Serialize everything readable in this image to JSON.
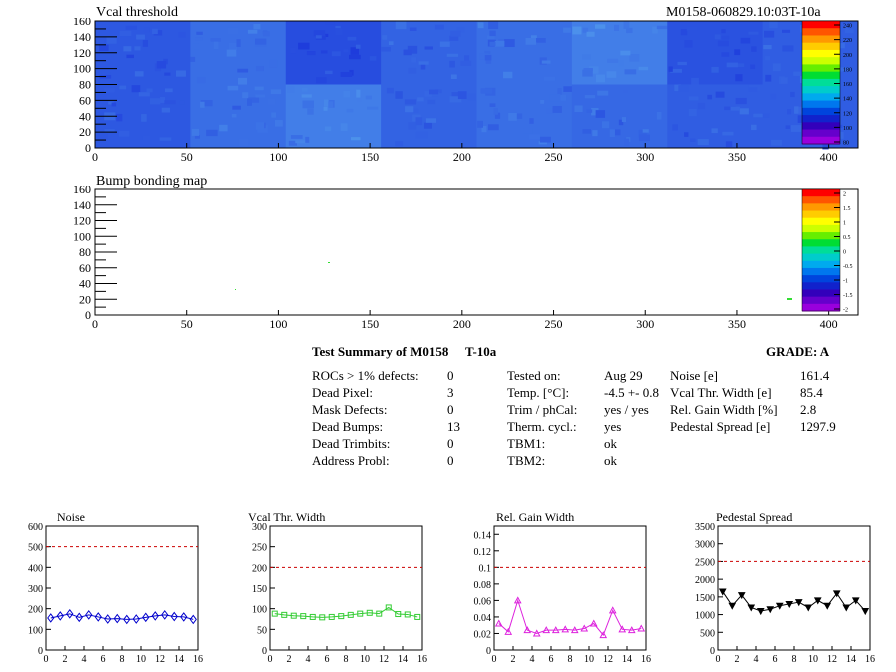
{
  "header": {
    "map_title": "Vcal threshold",
    "module_id": "M0158-060829.10:03T-10a",
    "bump_title": "Bump bonding map"
  },
  "vcal_map": {
    "x_ticks": [
      "0",
      "50",
      "100",
      "150",
      "200",
      "250",
      "300",
      "350",
      "400"
    ],
    "y_ticks": [
      "0",
      "20",
      "40",
      "60",
      "80",
      "100",
      "120",
      "140",
      "160"
    ],
    "scale_labels": [
      "240",
      "220",
      "200",
      "180",
      "160",
      "140",
      "120",
      "100",
      "80"
    ]
  },
  "bump_map": {
    "x_ticks": [
      "0",
      "50",
      "100",
      "150",
      "200",
      "250",
      "300",
      "350",
      "400"
    ],
    "y_ticks": [
      "0",
      "20",
      "40",
      "60",
      "80",
      "100",
      "120",
      "140",
      "160"
    ],
    "scale_labels": [
      "2",
      "1.5",
      "1",
      "0.5",
      "0",
      "-0.5",
      "-1",
      "-1.5",
      "-2"
    ]
  },
  "summary": {
    "title": "Test Summary of M0158",
    "test": "T-10a",
    "grade": "GRADE:  A",
    "col1": [
      {
        "label": "ROCs > 1% defects:",
        "value": "0"
      },
      {
        "label": "Dead Pixel:",
        "value": "3"
      },
      {
        "label": "Mask Defects:",
        "value": "0"
      },
      {
        "label": "Dead Bumps:",
        "value": "13"
      },
      {
        "label": "Dead Trimbits:",
        "value": "0"
      },
      {
        "label": "Address Probl:",
        "value": "0"
      }
    ],
    "col2": [
      {
        "label": "Tested on:",
        "value": "Aug 29"
      },
      {
        "label": "Temp. [°C]:",
        "value": "-4.5 +- 0.8"
      },
      {
        "label": "Trim / phCal:",
        "value": "yes / yes"
      },
      {
        "label": "Therm. cycl.:",
        "value": "yes"
      },
      {
        "label": "TBM1:",
        "value": "ok"
      },
      {
        "label": "TBM2:",
        "value": "ok"
      }
    ],
    "col3": [
      {
        "label": "Noise [e]",
        "value": "161.4"
      },
      {
        "label": "Vcal Thr. Width [e]",
        "value": "85.4"
      },
      {
        "label": "Rel. Gain Width [%]",
        "value": "2.8"
      },
      {
        "label": "Pedestal Spread [e]",
        "value": "1297.9"
      }
    ]
  },
  "chart_data": [
    {
      "type": "line",
      "title": "Noise",
      "x": [
        0,
        1,
        2,
        3,
        4,
        5,
        6,
        7,
        8,
        9,
        10,
        11,
        12,
        13,
        14,
        15
      ],
      "values": [
        155,
        165,
        175,
        158,
        170,
        160,
        150,
        152,
        148,
        150,
        158,
        165,
        170,
        162,
        160,
        148
      ],
      "ylim": [
        0,
        600
      ],
      "limit": 500,
      "yticks": [
        "0",
        "100",
        "200",
        "300",
        "400",
        "500",
        "600"
      ],
      "xticks": [
        "0",
        "2",
        "4",
        "6",
        "8",
        "10",
        "12",
        "14",
        "16"
      ],
      "color": "#0000cc",
      "marker": "diamond"
    },
    {
      "type": "line",
      "title": "Vcal Thr. Width",
      "x": [
        0,
        1,
        2,
        3,
        4,
        5,
        6,
        7,
        8,
        9,
        10,
        11,
        12,
        13,
        14,
        15
      ],
      "values": [
        88,
        85,
        83,
        82,
        80,
        79,
        80,
        82,
        85,
        88,
        90,
        88,
        103,
        87,
        86,
        80
      ],
      "ylim": [
        0,
        300
      ],
      "limit": 200,
      "yticks": [
        "0",
        "50",
        "100",
        "150",
        "200",
        "250",
        "300"
      ],
      "xticks": [
        "0",
        "2",
        "4",
        "6",
        "8",
        "10",
        "12",
        "14",
        "16"
      ],
      "color": "#33cc33",
      "marker": "square"
    },
    {
      "type": "line",
      "title": "Rel. Gain Width",
      "x": [
        0,
        1,
        2,
        3,
        4,
        5,
        6,
        7,
        8,
        9,
        10,
        11,
        12,
        13,
        14,
        15
      ],
      "values": [
        0.032,
        0.022,
        0.06,
        0.024,
        0.02,
        0.024,
        0.024,
        0.025,
        0.024,
        0.026,
        0.032,
        0.018,
        0.048,
        0.025,
        0.024,
        0.026
      ],
      "ylim": [
        0,
        0.15
      ],
      "limit": 0.1,
      "yticks": [
        "0",
        "0.02",
        "0.04",
        "0.06",
        "0.08",
        "0.1",
        "0.12",
        "0.14"
      ],
      "ytick_values": [
        0,
        0.02,
        0.04,
        0.06,
        0.08,
        0.1,
        0.12,
        0.14
      ],
      "xticks": [
        "0",
        "2",
        "4",
        "6",
        "8",
        "10",
        "12",
        "14",
        "16"
      ],
      "color": "#dd22dd",
      "marker": "triangle"
    },
    {
      "type": "line",
      "title": "Pedestal Spread",
      "x": [
        0,
        1,
        2,
        3,
        4,
        5,
        6,
        7,
        8,
        9,
        10,
        11,
        12,
        13,
        14,
        15
      ],
      "values": [
        1650,
        1250,
        1550,
        1200,
        1100,
        1150,
        1250,
        1300,
        1350,
        1200,
        1400,
        1250,
        1600,
        1200,
        1400,
        1100
      ],
      "ylim": [
        0,
        3500
      ],
      "limit": 2500,
      "yticks": [
        "0",
        "500",
        "1000",
        "1500",
        "2000",
        "2500",
        "3000",
        "3500"
      ],
      "xticks": [
        "0",
        "2",
        "4",
        "6",
        "8",
        "10",
        "12",
        "14",
        "16"
      ],
      "color": "#000000",
      "marker": "triangle-down"
    }
  ]
}
